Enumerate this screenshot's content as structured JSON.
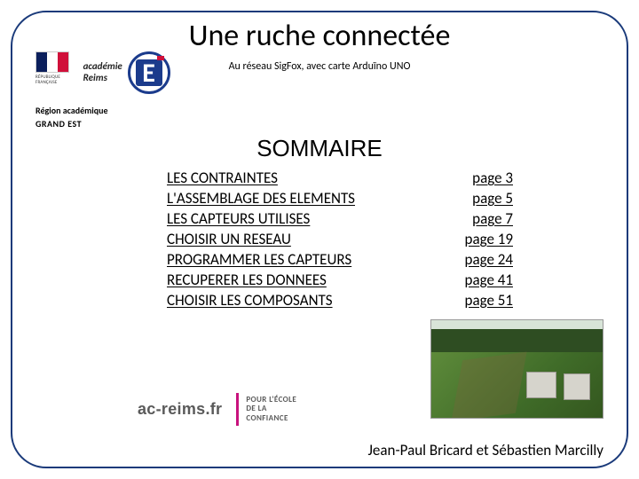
{
  "title": "Une ruche connectée",
  "subtitle": "Au réseau SigFox, avec carte Arduïno UNO",
  "rf_label": "RÉPUBLIQUE FRANÇAISE",
  "academie_label": "académie\nReims",
  "region": {
    "line1": "Région académique",
    "line2": "GRAND EST"
  },
  "sommaire": "SOMMAIRE",
  "toc": [
    {
      "label": "LES CONTRAINTES",
      "page": "page 3"
    },
    {
      "label": "L'ASSEMBLAGE DES ELEMENTS",
      "page": "page 5"
    },
    {
      "label": "LES CAPTEURS UTILISES",
      "page": "page 7"
    },
    {
      "label": "CHOISIR UN RESEAU",
      "page": "page 19"
    },
    {
      "label": "PROGRAMMER LES CAPTEURS",
      "page": "page 24"
    },
    {
      "label": "RECUPERER LES DONNEES",
      "page": "page 41"
    },
    {
      "label": "CHOISIR LES COMPOSANTS",
      "page": "page 51"
    }
  ],
  "acreims": "ac-reims.fr",
  "ecole": {
    "l1": "POUR L'ÉCOLE",
    "l2": "DE LA",
    "l3": "CONFIANCE"
  },
  "authors": "Jean-Paul Bricard et Sébastien Marcilly",
  "colors": {
    "frame": "#1a3a7a",
    "accentPink": "#c8127d",
    "flagBlue": "#0b1f5c",
    "flagRed": "#d0103a"
  }
}
